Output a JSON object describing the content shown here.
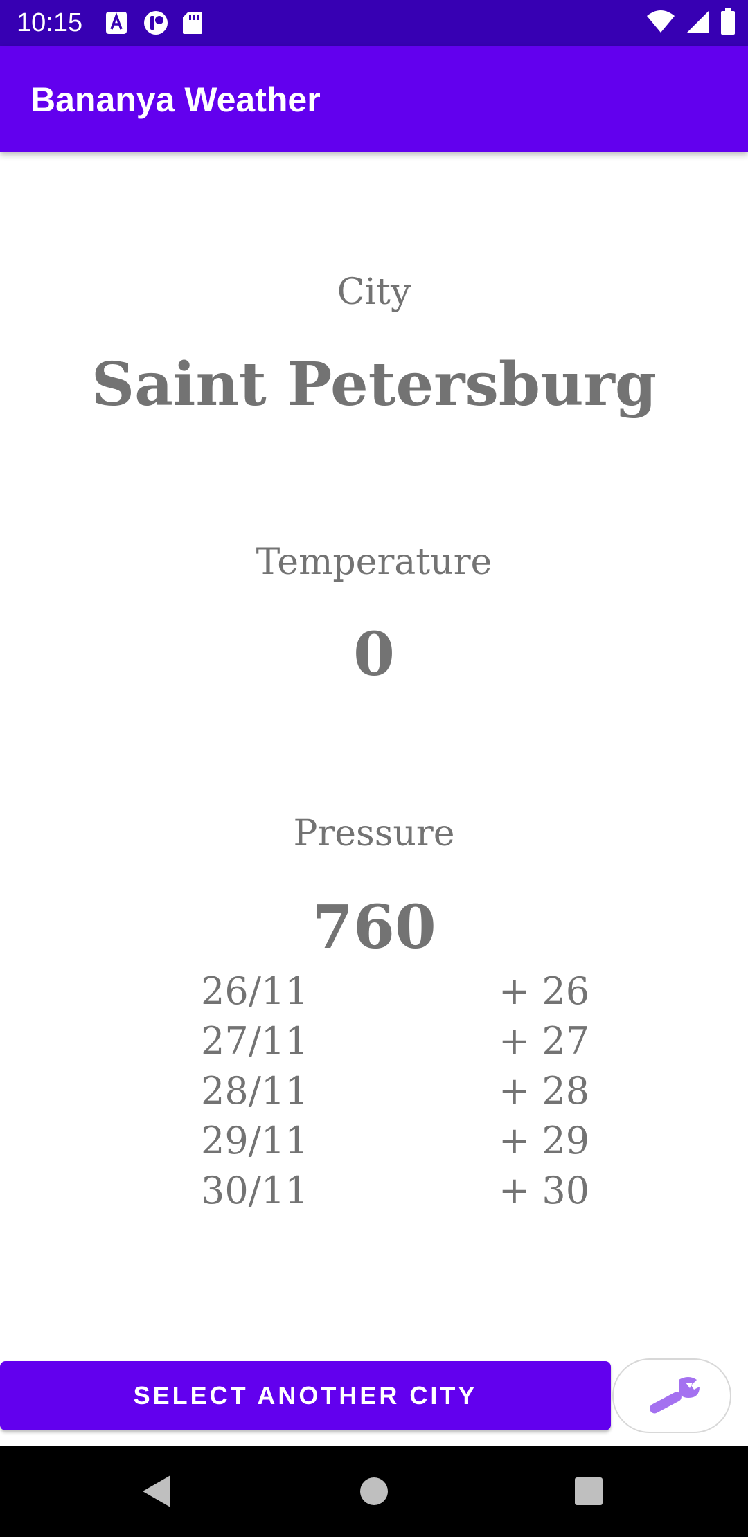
{
  "status_bar": {
    "time": "10:15",
    "left_icons": [
      "accessibility-a-icon",
      "app-notification-icon",
      "sd-card-icon"
    ],
    "right_icons": [
      "wifi-icon",
      "cell-signal-icon",
      "battery-icon"
    ]
  },
  "app_bar": {
    "title": "Bananya Weather"
  },
  "city": {
    "label": "City",
    "value": "Saint Petersburg"
  },
  "temperature": {
    "label": "Temperature",
    "value": "0"
  },
  "pressure": {
    "label": "Pressure",
    "value": "760"
  },
  "forecast": [
    {
      "date": "26/11",
      "temp": "+ 26"
    },
    {
      "date": "27/11",
      "temp": "+ 27"
    },
    {
      "date": "28/11",
      "temp": "+ 28"
    },
    {
      "date": "29/11",
      "temp": "+ 29"
    },
    {
      "date": "30/11",
      "temp": "+ 30"
    }
  ],
  "actions": {
    "select_city_label": "SELECT ANOTHER CITY",
    "settings_icon": "wrench-icon"
  },
  "nav_bar": {
    "buttons": [
      "back-icon",
      "home-icon",
      "recents-icon"
    ]
  },
  "colors": {
    "status_bar": "#3700b3",
    "primary": "#6200ee",
    "text_gray": "#737373",
    "wrench": "#a471f0"
  }
}
